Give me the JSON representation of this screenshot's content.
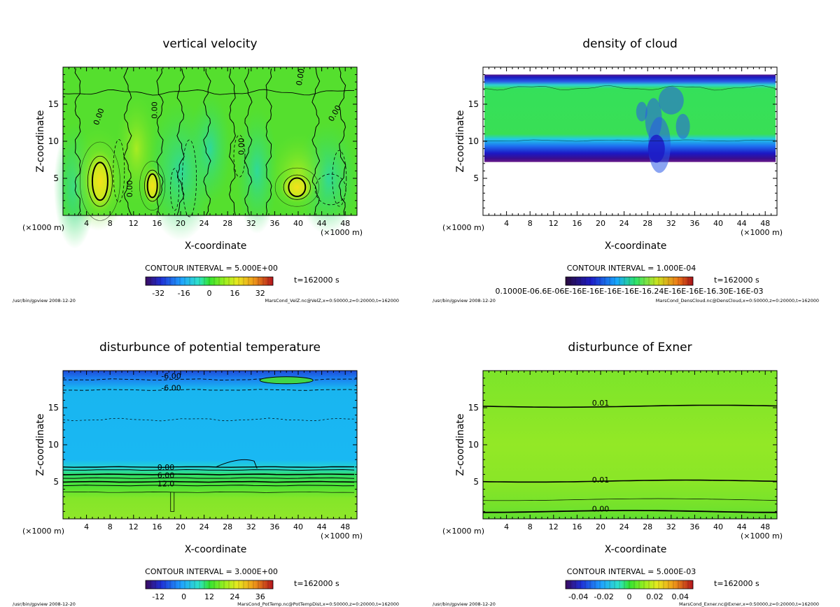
{
  "common": {
    "xlabel": "X-coordinate",
    "ylabel": "Z-coordinate",
    "x_unit_left": "(×1000 m)",
    "x_unit_right": "(×1000 m)",
    "time_label": "t=162000 s",
    "footer_left": "/usr/bin/gpview  2008-12-20"
  },
  "chart_data": [
    {
      "id": "velz",
      "type": "heatmap",
      "title": "vertical velocity",
      "xlabel": "X-coordinate",
      "ylabel": "Z-coordinate",
      "xlim": [
        0,
        50
      ],
      "ylim": [
        0,
        20
      ],
      "x_ticks": [
        4,
        8,
        12,
        16,
        20,
        24,
        28,
        32,
        36,
        40,
        44,
        48
      ],
      "y_ticks": [
        5,
        10,
        15
      ],
      "contour_interval": "CONTOUR INTERVAL = 5.000E+00",
      "colorbar_ticks": [
        "-32",
        "-16",
        "0",
        "16",
        "32"
      ],
      "colorbar_range": [
        -40,
        40
      ],
      "contour_labels": [
        {
          "text": "0.00",
          "x": 6.5,
          "y": 13.2,
          "rot": -70
        },
        {
          "text": "0.00",
          "x": 16.0,
          "y": 14.2,
          "rot": -90
        },
        {
          "text": "0.00",
          "x": 11.8,
          "y": 3.6,
          "rot": -90
        },
        {
          "text": "0.00",
          "x": 30.8,
          "y": 9.3,
          "rot": -90
        },
        {
          "text": "0.00",
          "x": 40.8,
          "y": 18.6,
          "rot": -80
        },
        {
          "text": "0.00",
          "x": 46.6,
          "y": 13.6,
          "rot": -60
        }
      ],
      "time": "t=162000 s",
      "footer": "MarsCond_VelZ.nc@VelZ,x=0:50000,z=0:20000,t=162000"
    },
    {
      "id": "cloud",
      "type": "heatmap",
      "title": "density of cloud",
      "xlabel": "X-coordinate",
      "ylabel": "Z-coordinate",
      "xlim": [
        0,
        50
      ],
      "ylim": [
        0,
        20
      ],
      "x_ticks": [
        4,
        8,
        12,
        16,
        20,
        24,
        28,
        32,
        36,
        40,
        44,
        48
      ],
      "y_ticks": [
        5,
        10,
        15
      ],
      "contour_interval": "CONTOUR INTERVAL = 1.000E-04",
      "colorbar_label": "0.1000E-06.6E-06E-16E-16E-16E-16E-16.24E-16E-16E-16.30E-16E-03",
      "time": "t=162000 s",
      "footer": "MarsCond_DensCloud.nc@DensCloud,x=0:50000,z=0:20000,t=162000"
    },
    {
      "id": "ptemp",
      "type": "heatmap",
      "title": "disturbunce of potential temperature",
      "xlabel": "X-coordinate",
      "ylabel": "Z-coordinate",
      "xlim": [
        0,
        50
      ],
      "ylim": [
        0,
        20
      ],
      "x_ticks": [
        4,
        8,
        12,
        16,
        20,
        24,
        28,
        32,
        36,
        40,
        44,
        48
      ],
      "y_ticks": [
        5,
        10,
        15
      ],
      "contour_interval": "CONTOUR INTERVAL = 3.000E+00",
      "colorbar_ticks": [
        "-12",
        "0",
        "12",
        "24",
        "36"
      ],
      "colorbar_range": [
        -18,
        42
      ],
      "contour_labels": [
        {
          "text": "-6.00",
          "x": 18.4,
          "y": 18.9,
          "rot": 0
        },
        {
          "text": "-6.00",
          "x": 18.4,
          "y": 17.3,
          "rot": 0
        },
        {
          "text": "0.00",
          "x": 17.5,
          "y": 6.6,
          "rot": 0
        },
        {
          "text": "6.00",
          "x": 17.5,
          "y": 5.5,
          "rot": 0
        },
        {
          "text": "12.0",
          "x": 17.5,
          "y": 4.4,
          "rot": 0
        }
      ],
      "time": "t=162000 s",
      "footer": "MarsCond_PotTemp.nc@PotTempDist,x=0:50000,z=0:20000,t=162000"
    },
    {
      "id": "exner",
      "type": "heatmap",
      "title": "disturbunce of Exner",
      "xlabel": "X-coordinate",
      "ylabel": "Z-coordinate",
      "xlim": [
        0,
        50
      ],
      "ylim": [
        0,
        20
      ],
      "x_ticks": [
        4,
        8,
        12,
        16,
        20,
        24,
        28,
        32,
        36,
        40,
        44,
        48
      ],
      "y_ticks": [
        5,
        10,
        15
      ],
      "contour_interval": "CONTOUR INTERVAL = 5.000E-03",
      "colorbar_ticks": [
        "-0.04",
        "-0.02",
        "0",
        "0.02",
        "0.04"
      ],
      "colorbar_range": [
        -0.05,
        0.05
      ],
      "contour_labels": [
        {
          "text": "0.01",
          "x": 20.0,
          "y": 15.3,
          "rot": 0
        },
        {
          "text": "0.01",
          "x": 20.0,
          "y": 4.9,
          "rot": 0
        },
        {
          "text": "0.00",
          "x": 20.0,
          "y": 1.0,
          "rot": 0
        }
      ],
      "time": "t=162000 s",
      "footer": "MarsCond_Exner.nc@Exner,x=0:50000,z=0:20000,t=162000"
    }
  ]
}
